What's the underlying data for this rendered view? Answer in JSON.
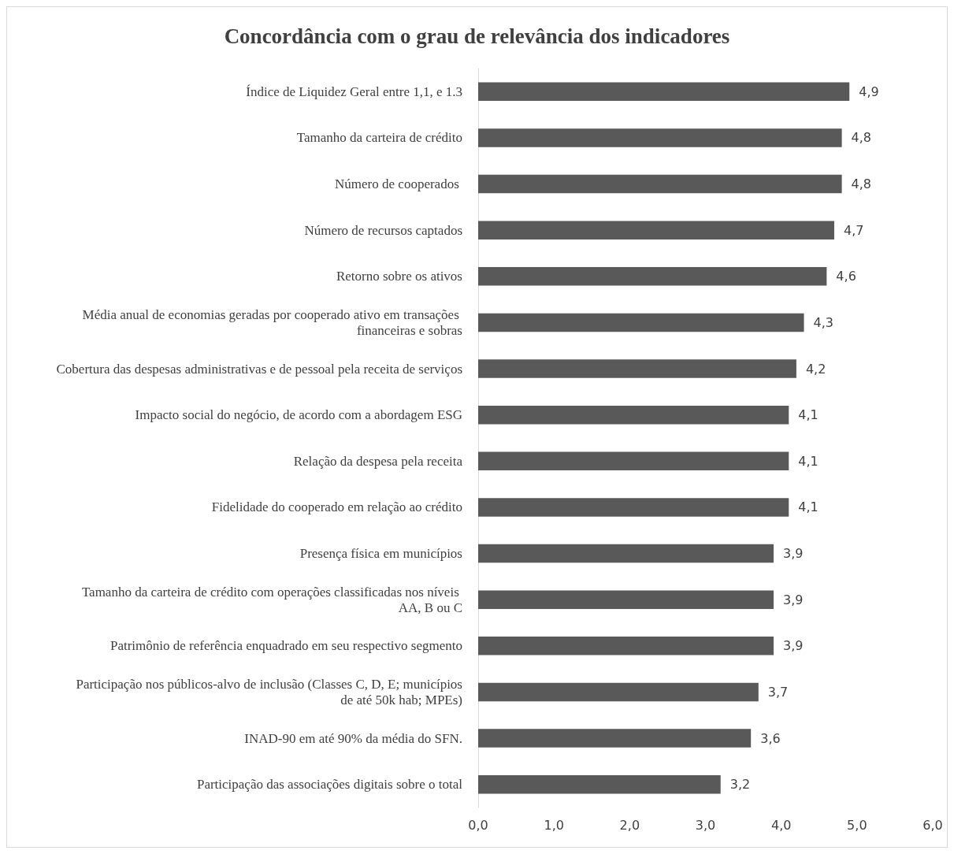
{
  "chart_data": {
    "type": "bar",
    "orientation": "horizontal",
    "title": "Concordância com o grau de relevância dos indicadores",
    "categories": [
      "Índice de Liquidez Geral entre 1,1, e 1.3",
      "Tamanho da carteira de crédito",
      "Número de cooperados ",
      "Número de recursos captados",
      "Retorno sobre os ativos",
      "Média anual de economias geradas por cooperado ativo em transações financeiras e sobras",
      "Cobertura das despesas administrativas e de pessoal pela receita de serviços",
      "Impacto social do negócio, de acordo com a abordagem ESG",
      "Relação da despesa pela receita",
      "Fidelidade do cooperado em relação ao crédito",
      "Presença física em municípios",
      "Tamanho da carteira de crédito com operações classificadas nos níveis AA, B ou C",
      "Patrimônio de referência enquadrado em seu respectivo segmento",
      "Participação nos públicos-alvo de inclusão (Classes C, D, E; municípios de até 50k hab; MPEs)",
      "INAD-90 em até 90% da média do SFN.",
      "Participação das associações digitais sobre o total"
    ],
    "values": [
      4.9,
      4.8,
      4.8,
      4.7,
      4.6,
      4.3,
      4.2,
      4.1,
      4.1,
      4.1,
      3.9,
      3.9,
      3.9,
      3.7,
      3.6,
      3.2
    ],
    "value_labels": [
      "4,9",
      "4,8",
      "4,8",
      "4,7",
      "4,6",
      "4,3",
      "4,2",
      "4,1",
      "4,1",
      "4,1",
      "3,9",
      "3,9",
      "3,9",
      "3,7",
      "3,6",
      "3,2"
    ],
    "color": "#595959",
    "xlim": [
      0,
      6
    ],
    "xticks": [
      {
        "value": 0,
        "label": "0,0"
      },
      {
        "value": 1,
        "label": "1,0"
      },
      {
        "value": 2,
        "label": "2,0"
      },
      {
        "value": 3,
        "label": "3,0"
      },
      {
        "value": 4,
        "label": "4,0"
      },
      {
        "value": 5,
        "label": "5,0"
      },
      {
        "value": 6,
        "label": "6,0"
      }
    ],
    "grid": false
  }
}
